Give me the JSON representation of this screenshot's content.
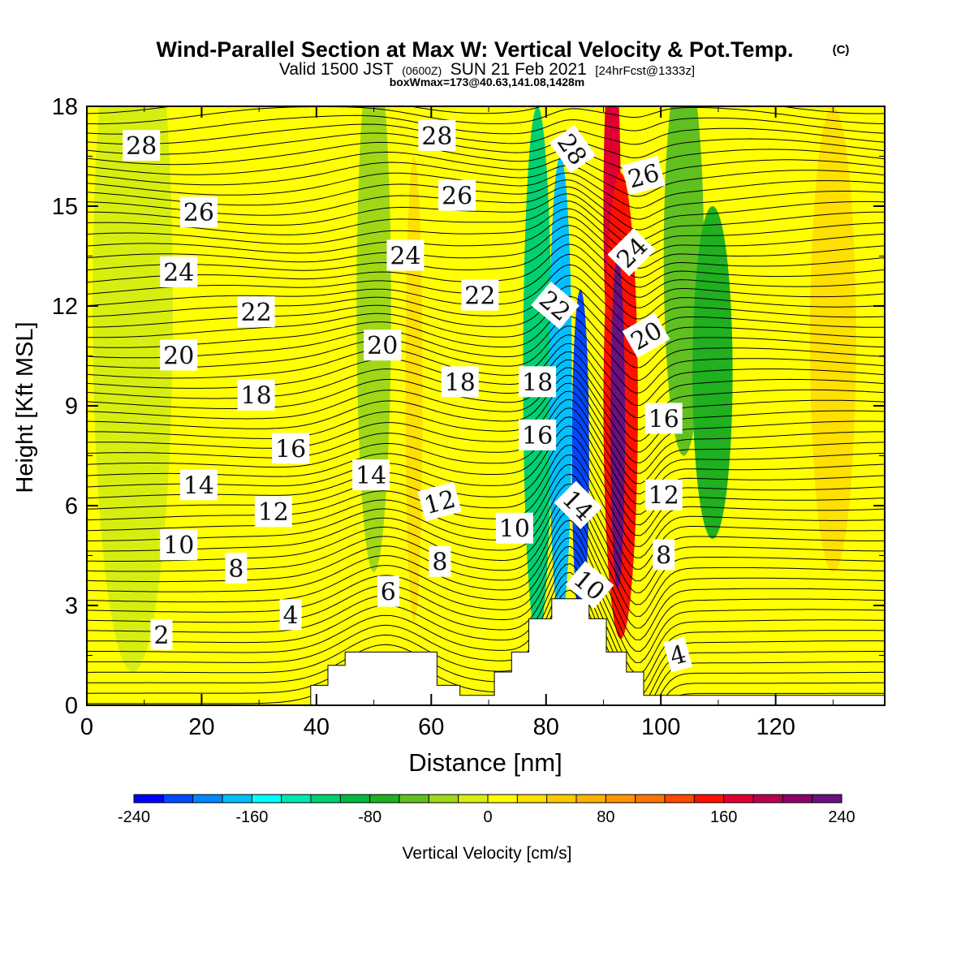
{
  "chart_data": {
    "type": "heatmap",
    "title": "Wind-Parallel Section at Max W: Vertical Velocity & Pot.Temp.",
    "title_mark": "(C)",
    "subtitle_parts": [
      "Valid 1500 JST",
      "(0600Z)",
      "SUN 21 Feb 2021",
      "[24hrFcst@1333z]"
    ],
    "subtitle2": "boxWmax=173@40.63,141.08,1428m",
    "xlabel": "Distance [nm]",
    "ylabel": "Height [Kft MSL]",
    "xlim": [
      0,
      139
    ],
    "ylim": [
      0,
      18
    ],
    "x_ticks": [
      0,
      20,
      40,
      60,
      80,
      100,
      120
    ],
    "y_ticks": [
      0,
      3,
      6,
      9,
      12,
      15,
      18
    ],
    "colorbar": {
      "label": "Vertical Velocity [cm/s]",
      "range": [
        -240,
        240
      ],
      "tick_values": [
        -240,
        -160,
        -80,
        0,
        80,
        160,
        240
      ],
      "tick_labels": [
        "-240",
        "-160",
        "-80",
        "0",
        "80",
        "160",
        "240"
      ],
      "colors": [
        "#0000ff",
        "#0048ff",
        "#0088ff",
        "#00c0ff",
        "#00ffff",
        "#00e8b0",
        "#00d070",
        "#00b840",
        "#20b020",
        "#60c020",
        "#a0d818",
        "#d8ee10",
        "#ffff00",
        "#ffe000",
        "#ffc800",
        "#ffb000",
        "#ff9400",
        "#ff7400",
        "#ff4800",
        "#ff1000",
        "#e00030",
        "#b80050",
        "#900068",
        "#6a1080"
      ]
    },
    "contour_field": "Pot.Temp. (C)",
    "contour_levels": [
      2,
      4,
      6,
      8,
      10,
      12,
      14,
      16,
      18,
      20,
      22,
      24,
      26,
      28
    ],
    "contour_labels": [
      {
        "text": "28",
        "x": 9.5,
        "y": 16.8,
        "angle": 0
      },
      {
        "text": "28",
        "x": 61,
        "y": 17.1,
        "angle": 0
      },
      {
        "text": "28",
        "x": 84.5,
        "y": 16.7,
        "angle": 55
      },
      {
        "text": "26",
        "x": 19.5,
        "y": 14.8,
        "angle": 0
      },
      {
        "text": "26",
        "x": 64.5,
        "y": 15.3,
        "angle": 0
      },
      {
        "text": "26",
        "x": 97,
        "y": 15.9,
        "angle": -15
      },
      {
        "text": "24",
        "x": 16,
        "y": 13.0,
        "angle": 0
      },
      {
        "text": "24",
        "x": 55.5,
        "y": 13.5,
        "angle": 0
      },
      {
        "text": "24",
        "x": 95,
        "y": 13.6,
        "angle": -45
      },
      {
        "text": "22",
        "x": 29.5,
        "y": 11.8,
        "angle": 0
      },
      {
        "text": "22",
        "x": 68.5,
        "y": 12.3,
        "angle": 0
      },
      {
        "text": "22",
        "x": 81.5,
        "y": 12.0,
        "angle": 40
      },
      {
        "text": "20",
        "x": 16,
        "y": 10.5,
        "angle": 0
      },
      {
        "text": "20",
        "x": 51.5,
        "y": 10.8,
        "angle": 0
      },
      {
        "text": "20",
        "x": 97.5,
        "y": 11.1,
        "angle": -30
      },
      {
        "text": "18",
        "x": 29.5,
        "y": 9.3,
        "angle": 0
      },
      {
        "text": "18",
        "x": 65,
        "y": 9.7,
        "angle": 0
      },
      {
        "text": "18",
        "x": 78.5,
        "y": 9.7,
        "angle": 0
      },
      {
        "text": "16",
        "x": 35.5,
        "y": 7.7,
        "angle": 0
      },
      {
        "text": "16",
        "x": 78.5,
        "y": 8.1,
        "angle": 0
      },
      {
        "text": "16",
        "x": 100.5,
        "y": 8.6,
        "angle": 0
      },
      {
        "text": "14",
        "x": 19.5,
        "y": 6.6,
        "angle": 0
      },
      {
        "text": "14",
        "x": 49.5,
        "y": 6.9,
        "angle": 0
      },
      {
        "text": "14",
        "x": 85.5,
        "y": 6.0,
        "angle": 45
      },
      {
        "text": "12",
        "x": 32.5,
        "y": 5.8,
        "angle": 0
      },
      {
        "text": "12",
        "x": 61.5,
        "y": 6.1,
        "angle": -15
      },
      {
        "text": "12",
        "x": 100.5,
        "y": 6.3,
        "angle": 0
      },
      {
        "text": "10",
        "x": 16,
        "y": 4.8,
        "angle": 0
      },
      {
        "text": "10",
        "x": 74.5,
        "y": 5.3,
        "angle": 0
      },
      {
        "text": "10",
        "x": 87.5,
        "y": 3.6,
        "angle": 40
      },
      {
        "text": "8",
        "x": 26,
        "y": 4.1,
        "angle": 0
      },
      {
        "text": "8",
        "x": 61.5,
        "y": 4.3,
        "angle": 0
      },
      {
        "text": "8",
        "x": 100.5,
        "y": 4.5,
        "angle": 0
      },
      {
        "text": "6",
        "x": 52.5,
        "y": 3.4,
        "angle": 0
      },
      {
        "text": "4",
        "x": 35.5,
        "y": 2.7,
        "angle": 0
      },
      {
        "text": "4",
        "x": 103,
        "y": 1.5,
        "angle": -15
      },
      {
        "text": "2",
        "x": 13,
        "y": 2.1,
        "angle": 0
      }
    ],
    "terrain": [
      [
        39,
        0
      ],
      [
        39,
        0.6
      ],
      [
        42,
        0.6
      ],
      [
        42,
        1.2
      ],
      [
        45,
        1.2
      ],
      [
        45,
        1.6
      ],
      [
        61,
        1.6
      ],
      [
        61,
        0.6
      ],
      [
        65,
        0.6
      ],
      [
        65,
        0.3
      ],
      [
        71,
        0.3
      ],
      [
        71,
        1.0
      ],
      [
        74,
        1.0
      ],
      [
        74,
        1.6
      ],
      [
        77,
        1.6
      ],
      [
        77,
        2.6
      ],
      [
        81,
        2.6
      ],
      [
        81,
        3.2
      ],
      [
        87.5,
        3.2
      ],
      [
        87.5,
        2.6
      ],
      [
        90.5,
        2.6
      ],
      [
        90.5,
        1.6
      ],
      [
        94,
        1.6
      ],
      [
        94,
        1.0
      ],
      [
        97,
        1.0
      ],
      [
        97,
        0.3
      ],
      [
        139,
        0.3
      ],
      [
        139,
        0
      ]
    ],
    "w_field": [
      {
        "x": 78.5,
        "y": 10,
        "w": 5,
        "h": 16,
        "v": -110
      },
      {
        "x": 82.5,
        "y": 9.5,
        "w": 4,
        "h": 14,
        "v": -170
      },
      {
        "x": 86,
        "y": 7.5,
        "w": 3,
        "h": 10,
        "v": -210
      },
      {
        "x": 91.5,
        "y": 15,
        "w": 3,
        "h": 10,
        "v": 170
      },
      {
        "x": 93,
        "y": 9,
        "w": 6,
        "h": 14,
        "v": 150
      },
      {
        "x": 92.5,
        "y": 8.5,
        "w": 2.5,
        "h": 10,
        "v": 230
      },
      {
        "x": 104,
        "y": 13.5,
        "w": 7,
        "h": 12,
        "v": -50
      },
      {
        "x": 109,
        "y": 10,
        "w": 7,
        "h": 10,
        "v": -80
      },
      {
        "x": 50,
        "y": 12,
        "w": 6,
        "h": 16,
        "v": -25
      },
      {
        "x": 8,
        "y": 12,
        "w": 14,
        "h": 22,
        "v": -18
      },
      {
        "x": 57,
        "y": 9.5,
        "w": 3,
        "h": 14,
        "v": 35
      },
      {
        "x": 130,
        "y": 11,
        "w": 8,
        "h": 14,
        "v": 35
      }
    ]
  }
}
